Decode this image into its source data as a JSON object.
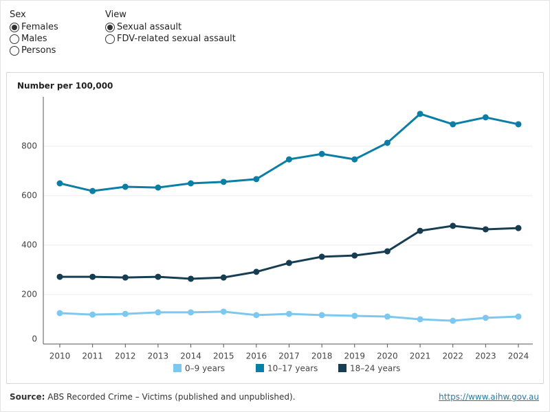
{
  "controls": [
    {
      "label": "Sex",
      "options": [
        "Females",
        "Males",
        "Persons"
      ],
      "selected_index": 0
    },
    {
      "label": "View",
      "options": [
        "Sexual assault",
        "FDV-related sexual assault"
      ],
      "selected_index": 0
    }
  ],
  "chart_data": {
    "type": "line",
    "y_label": "Number per 100,000",
    "categories": [
      "2010",
      "2011",
      "2012",
      "2013",
      "2014",
      "2015",
      "2016",
      "2017",
      "2018",
      "2019",
      "2020",
      "2021",
      "2022",
      "2023",
      "2024"
    ],
    "series": [
      {
        "name": "0–9 years",
        "color": "#7cc8ef",
        "values": [
          125,
          119,
          122,
          128,
          128,
          131,
          117,
          122,
          117,
          114,
          111,
          100,
          94,
          106,
          111
        ]
      },
      {
        "name": "10–17 years",
        "color": "#0a7ea4",
        "values": [
          650,
          619,
          636,
          633,
          650,
          656,
          667,
          747,
          769,
          747,
          814,
          931,
          889,
          917,
          889
        ]
      },
      {
        "name": "18–24 years",
        "color": "#173d52",
        "values": [
          272,
          272,
          269,
          272,
          264,
          269,
          292,
          328,
          353,
          358,
          375,
          458,
          478,
          464,
          469
        ]
      }
    ],
    "ylim": [
      0,
      1000
    ],
    "yticks": [
      0,
      200,
      400,
      600,
      800
    ],
    "grid": true
  },
  "source": {
    "label": "Source:",
    "text": "ABS Recorded Crime – Victims (published and unpublished).",
    "url": "https://www.aihw.gov.au"
  }
}
